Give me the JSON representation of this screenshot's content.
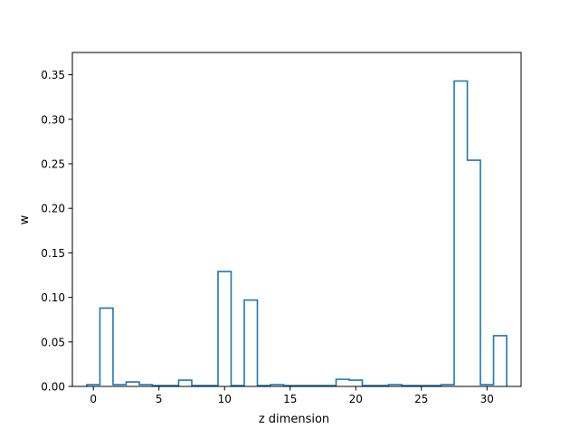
{
  "chart_data": {
    "type": "bar",
    "style": "step",
    "title": "",
    "xlabel": "z dimension",
    "ylabel": "w",
    "xlim": [
      -1.6,
      32.6
    ],
    "ylim": [
      0,
      0.375
    ],
    "xticks": [
      0,
      5,
      10,
      15,
      20,
      25,
      30
    ],
    "xtick_labels": [
      "0",
      "5",
      "10",
      "15",
      "20",
      "25",
      "30"
    ],
    "yticks": [
      0.0,
      0.05,
      0.1,
      0.15,
      0.2,
      0.25,
      0.3,
      0.35
    ],
    "ytick_labels": [
      "0.00",
      "0.05",
      "0.10",
      "0.15",
      "0.20",
      "0.25",
      "0.30",
      "0.35"
    ],
    "grid": false,
    "legend": "none",
    "line_color": "#1f77b4",
    "x": [
      0,
      1,
      2,
      3,
      4,
      5,
      6,
      7,
      8,
      9,
      10,
      11,
      12,
      13,
      14,
      15,
      16,
      17,
      18,
      19,
      20,
      21,
      22,
      23,
      24,
      25,
      26,
      27,
      28,
      29,
      30,
      31
    ],
    "values": [
      0.002,
      0.088,
      0.002,
      0.005,
      0.002,
      0.001,
      0.001,
      0.007,
      0.001,
      0.001,
      0.129,
      0.001,
      0.097,
      0.001,
      0.002,
      0.001,
      0.001,
      0.001,
      0.001,
      0.008,
      0.007,
      0.001,
      0.001,
      0.002,
      0.001,
      0.001,
      0.001,
      0.002,
      0.343,
      0.254,
      0.002,
      0.057
    ]
  }
}
